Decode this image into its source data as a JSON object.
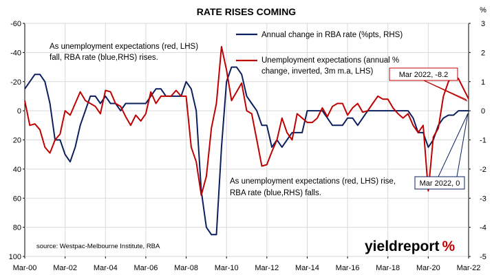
{
  "chart_data": {
    "type": "line",
    "title": "RATE RISES COMING",
    "left_axis": {
      "ticks": [
        "-60",
        "-40",
        "-20",
        "0",
        "20",
        "40",
        "60",
        "80",
        "100"
      ],
      "ylim": [
        100,
        -60
      ],
      "inverted": true
    },
    "right_axis": {
      "unit_label": "%",
      "ticks": [
        "3",
        "2",
        "1",
        "0",
        "-1",
        "-2",
        "-3",
        "-4",
        "-5"
      ],
      "ylim": [
        -5,
        3
      ]
    },
    "x_ticks": [
      "Mar-00",
      "Mar-02",
      "Mar-04",
      "Mar-06",
      "Mar-08",
      "Mar-10",
      "Mar-12",
      "Mar-14",
      "Mar-16",
      "Mar-18",
      "Mar-20",
      "Mar-22"
    ],
    "xlim": [
      "2000-03",
      "2022-03"
    ],
    "grid": true,
    "legend_position": "top-right",
    "series": [
      {
        "name": "Annual change in RBA rate (%pts, RHS)",
        "color": "#0b1f5e",
        "axis": "right",
        "points": [
          [
            "2000-03",
            0.75
          ],
          [
            "2000-06",
            1.0
          ],
          [
            "2000-09",
            1.25
          ],
          [
            "2000-12",
            1.25
          ],
          [
            "2001-03",
            1.0
          ],
          [
            "2001-06",
            0.25
          ],
          [
            "2001-09",
            -1.0
          ],
          [
            "2001-12",
            -1.0
          ],
          [
            "2002-03",
            -1.5
          ],
          [
            "2002-06",
            -1.75
          ],
          [
            "2002-09",
            -1.25
          ],
          [
            "2002-12",
            -0.5
          ],
          [
            "2003-03",
            0.0
          ],
          [
            "2003-06",
            0.5
          ],
          [
            "2003-09",
            0.5
          ],
          [
            "2003-12",
            0.25
          ],
          [
            "2004-03",
            0.5
          ],
          [
            "2004-06",
            0.25
          ],
          [
            "2004-09",
            0.25
          ],
          [
            "2004-12",
            0.0
          ],
          [
            "2005-03",
            0.25
          ],
          [
            "2005-06",
            0.25
          ],
          [
            "2005-09",
            0.25
          ],
          [
            "2005-12",
            0.25
          ],
          [
            "2006-03",
            0.25
          ],
          [
            "2006-06",
            0.5
          ],
          [
            "2006-09",
            0.75
          ],
          [
            "2006-12",
            0.75
          ],
          [
            "2007-03",
            0.5
          ],
          [
            "2007-06",
            0.5
          ],
          [
            "2007-09",
            0.5
          ],
          [
            "2007-12",
            0.5
          ],
          [
            "2008-03",
            1.0
          ],
          [
            "2008-06",
            0.75
          ],
          [
            "2008-09",
            0.0
          ],
          [
            "2008-12",
            -2.75
          ],
          [
            "2009-03",
            -4.0
          ],
          [
            "2009-06",
            -4.25
          ],
          [
            "2009-09",
            -4.25
          ],
          [
            "2009-12",
            -1.25
          ],
          [
            "2010-03",
            1.0
          ],
          [
            "2010-06",
            1.5
          ],
          [
            "2010-09",
            1.5
          ],
          [
            "2010-12",
            1.25
          ],
          [
            "2011-03",
            0.5
          ],
          [
            "2011-06",
            0.25
          ],
          [
            "2011-09",
            0.0
          ],
          [
            "2011-12",
            -0.5
          ],
          [
            "2012-03",
            -0.5
          ],
          [
            "2012-06",
            -1.25
          ],
          [
            "2012-09",
            -1.0
          ],
          [
            "2012-12",
            -1.25
          ],
          [
            "2013-03",
            -1.0
          ],
          [
            "2013-06",
            -0.75
          ],
          [
            "2013-09",
            -0.75
          ],
          [
            "2013-12",
            -0.75
          ],
          [
            "2014-03",
            0.0
          ],
          [
            "2014-06",
            0.0
          ],
          [
            "2014-09",
            0.0
          ],
          [
            "2014-12",
            0.0
          ],
          [
            "2015-03",
            -0.25
          ],
          [
            "2015-06",
            -0.5
          ],
          [
            "2015-09",
            -0.5
          ],
          [
            "2015-12",
            -0.5
          ],
          [
            "2016-03",
            -0.25
          ],
          [
            "2016-06",
            -0.25
          ],
          [
            "2016-09",
            -0.5
          ],
          [
            "2016-12",
            -0.25
          ],
          [
            "2017-03",
            0.0
          ],
          [
            "2017-06",
            0.0
          ],
          [
            "2017-09",
            0.0
          ],
          [
            "2017-12",
            0.0
          ],
          [
            "2018-03",
            0.0
          ],
          [
            "2018-06",
            0.0
          ],
          [
            "2018-09",
            0.0
          ],
          [
            "2018-12",
            0.0
          ],
          [
            "2019-03",
            0.0
          ],
          [
            "2019-06",
            -0.25
          ],
          [
            "2019-09",
            -0.75
          ],
          [
            "2019-12",
            -0.75
          ],
          [
            "2020-03",
            -1.25
          ],
          [
            "2020-06",
            -1.0
          ],
          [
            "2020-09",
            -0.5
          ],
          [
            "2020-12",
            -0.25
          ],
          [
            "2021-03",
            -0.15
          ],
          [
            "2021-06",
            -0.15
          ],
          [
            "2021-09",
            0.0
          ],
          [
            "2021-12",
            0.0
          ],
          [
            "2022-03",
            0.0
          ]
        ]
      },
      {
        "name": "Unemployment expectations (annual % change, inverted, 3m m.a, LHS)",
        "color": "#c00000",
        "axis": "left",
        "points": [
          [
            "2000-03",
            -7
          ],
          [
            "2000-06",
            10
          ],
          [
            "2000-09",
            9
          ],
          [
            "2000-12",
            13
          ],
          [
            "2001-03",
            25
          ],
          [
            "2001-06",
            29
          ],
          [
            "2001-09",
            20
          ],
          [
            "2001-12",
            16
          ],
          [
            "2002-03",
            0
          ],
          [
            "2002-06",
            3
          ],
          [
            "2002-09",
            -5
          ],
          [
            "2002-12",
            -13
          ],
          [
            "2003-03",
            -7
          ],
          [
            "2003-06",
            -5
          ],
          [
            "2003-09",
            -3
          ],
          [
            "2003-12",
            2
          ],
          [
            "2004-03",
            -14
          ],
          [
            "2004-06",
            -13
          ],
          [
            "2004-09",
            -5
          ],
          [
            "2004-12",
            -3
          ],
          [
            "2005-03",
            4
          ],
          [
            "2005-06",
            10
          ],
          [
            "2005-09",
            3
          ],
          [
            "2005-12",
            7
          ],
          [
            "2006-03",
            2
          ],
          [
            "2006-06",
            -13
          ],
          [
            "2006-09",
            -5
          ],
          [
            "2006-12",
            -10
          ],
          [
            "2007-03",
            -10
          ],
          [
            "2007-06",
            -10
          ],
          [
            "2007-09",
            -14
          ],
          [
            "2007-12",
            -10
          ],
          [
            "2008-03",
            -10
          ],
          [
            "2008-06",
            25
          ],
          [
            "2008-09",
            35
          ],
          [
            "2008-12",
            58
          ],
          [
            "2009-03",
            45
          ],
          [
            "2009-06",
            12
          ],
          [
            "2009-09",
            -5
          ],
          [
            "2009-12",
            -44
          ],
          [
            "2010-03",
            -28
          ],
          [
            "2010-06",
            -7
          ],
          [
            "2010-09",
            -13
          ],
          [
            "2010-12",
            -19
          ],
          [
            "2011-03",
            0
          ],
          [
            "2011-06",
            2
          ],
          [
            "2011-09",
            20
          ],
          [
            "2011-12",
            38
          ],
          [
            "2012-03",
            37
          ],
          [
            "2012-06",
            28
          ],
          [
            "2012-09",
            20
          ],
          [
            "2012-12",
            5
          ],
          [
            "2013-03",
            15
          ],
          [
            "2013-06",
            20
          ],
          [
            "2013-09",
            2
          ],
          [
            "2013-12",
            5
          ],
          [
            "2014-03",
            8
          ],
          [
            "2014-06",
            8
          ],
          [
            "2014-09",
            5
          ],
          [
            "2014-12",
            -2
          ],
          [
            "2015-03",
            4
          ],
          [
            "2015-06",
            -3
          ],
          [
            "2015-09",
            -5
          ],
          [
            "2015-12",
            -5
          ],
          [
            "2016-03",
            3
          ],
          [
            "2016-06",
            -2
          ],
          [
            "2016-09",
            -5
          ],
          [
            "2016-12",
            1
          ],
          [
            "2017-03",
            0
          ],
          [
            "2017-06",
            -5
          ],
          [
            "2017-09",
            -10
          ],
          [
            "2017-12",
            -8
          ],
          [
            "2018-03",
            -8
          ],
          [
            "2018-06",
            -2
          ],
          [
            "2018-09",
            2
          ],
          [
            "2018-12",
            5
          ],
          [
            "2019-03",
            2
          ],
          [
            "2019-06",
            10
          ],
          [
            "2019-09",
            15
          ],
          [
            "2019-12",
            10
          ],
          [
            "2020-03",
            55
          ],
          [
            "2020-06",
            18
          ],
          [
            "2020-09",
            12
          ],
          [
            "2020-12",
            -10
          ],
          [
            "2021-03",
            -20
          ],
          [
            "2021-06",
            -25
          ],
          [
            "2021-09",
            -22
          ],
          [
            "2021-12",
            -15
          ],
          [
            "2022-03",
            -8.2
          ]
        ]
      }
    ],
    "annotations": {
      "top_left": [
        "As unemployment expectations (red, LHS)",
        "fall, RBA rate (blue,RHS) rises."
      ],
      "bottom_middle": [
        "As unemployment expectations (red, LHS) rise,",
        "RBA rate (blue,RHS) falls."
      ],
      "callout_red": "Mar 2022, -8.2",
      "callout_blue": "Mar 2022, 0"
    },
    "legend": [
      "Annual change in RBA rate (%pts, RHS)",
      "Unemployment expectations (annual %",
      "change, inverted, 3m m.a, LHS)"
    ],
    "source": "source: Westpac-Melbourne Institute, RBA"
  },
  "logo": {
    "part_a": "yieldreport",
    "part_b": "%"
  }
}
